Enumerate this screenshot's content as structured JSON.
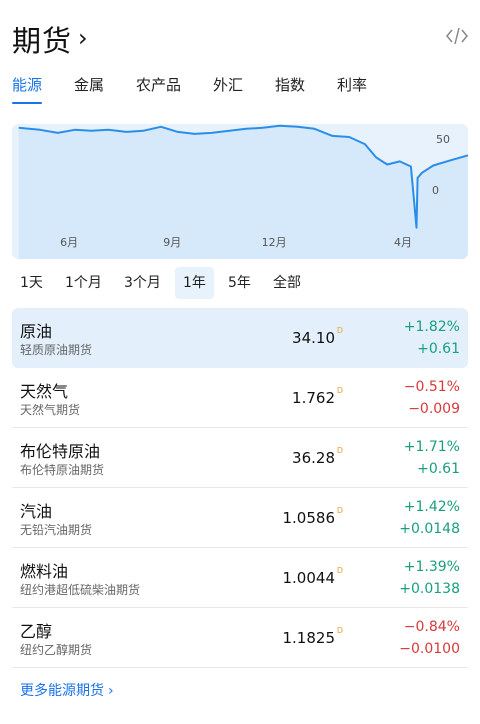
{
  "header": {
    "title": "期货",
    "chevron": "›",
    "code_icon": "code-icon"
  },
  "tabs": [
    {
      "label": "能源",
      "active": true
    },
    {
      "label": "金属",
      "active": false
    },
    {
      "label": "农产品",
      "active": false
    },
    {
      "label": "外汇",
      "active": false
    },
    {
      "label": "指数",
      "active": false
    },
    {
      "label": "利率",
      "active": false
    }
  ],
  "chart_data": {
    "type": "area",
    "x_ticks": [
      "6月",
      "9月",
      "12月",
      "4月"
    ],
    "y_ticks": [
      "50",
      "0"
    ],
    "colors": {
      "line": "#2a8ee8",
      "fill": "#d6e9fb"
    },
    "x": [
      "2019-05-01",
      "2019-05-20",
      "2019-06-05",
      "2019-06-20",
      "2019-07-05",
      "2019-07-20",
      "2019-08-05",
      "2019-08-20",
      "2019-09-05",
      "2019-09-20",
      "2019-10-05",
      "2019-10-20",
      "2019-11-05",
      "2019-11-20",
      "2019-12-05",
      "2019-12-20",
      "2020-01-05",
      "2020-01-20",
      "2020-02-05",
      "2020-02-20",
      "2020-03-05",
      "2020-03-15",
      "2020-03-25",
      "2020-04-05",
      "2020-04-15",
      "2020-04-20",
      "2020-04-21",
      "2020-04-25",
      "2020-05-05",
      "2020-05-20",
      "2020-06-05"
    ],
    "values": [
      61,
      59,
      56,
      59,
      58,
      59,
      57,
      58,
      62,
      57,
      55,
      56,
      58,
      60,
      61,
      63,
      62,
      60,
      53,
      52,
      45,
      32,
      25,
      28,
      23,
      -37,
      12,
      17,
      24,
      29,
      34
    ]
  },
  "ranges": [
    {
      "label": "1天",
      "active": false
    },
    {
      "label": "1个月",
      "active": false
    },
    {
      "label": "3个月",
      "active": false
    },
    {
      "label": "1年",
      "active": true
    },
    {
      "label": "5年",
      "active": false
    },
    {
      "label": "全部",
      "active": false
    }
  ],
  "rows": [
    {
      "name": "原油",
      "sub": "轻质原油期货",
      "price": "34.10",
      "flag": "D",
      "pct": "+1.82%",
      "chg": "+0.61",
      "dir": "up",
      "selected": true
    },
    {
      "name": "天然气",
      "sub": "天然气期货",
      "price": "1.762",
      "flag": "D",
      "pct": "−0.51%",
      "chg": "−0.009",
      "dir": "down",
      "selected": false
    },
    {
      "name": "布伦特原油",
      "sub": "布伦特原油期货",
      "price": "36.28",
      "flag": "D",
      "pct": "+1.71%",
      "chg": "+0.61",
      "dir": "up",
      "selected": false
    },
    {
      "name": "汽油",
      "sub": "无铅汽油期货",
      "price": "1.0586",
      "flag": "D",
      "pct": "+1.42%",
      "chg": "+0.0148",
      "dir": "up",
      "selected": false
    },
    {
      "name": "燃料油",
      "sub": "纽约港超低硫柴油期货",
      "price": "1.0044",
      "flag": "D",
      "pct": "+1.39%",
      "chg": "+0.0138",
      "dir": "up",
      "selected": false
    },
    {
      "name": "乙醇",
      "sub": "纽约乙醇期货",
      "price": "1.1825",
      "flag": "D",
      "pct": "−0.84%",
      "chg": "−0.0100",
      "dir": "down",
      "selected": false
    }
  ],
  "more": {
    "label": "更多能源期货",
    "chevron": "›"
  }
}
